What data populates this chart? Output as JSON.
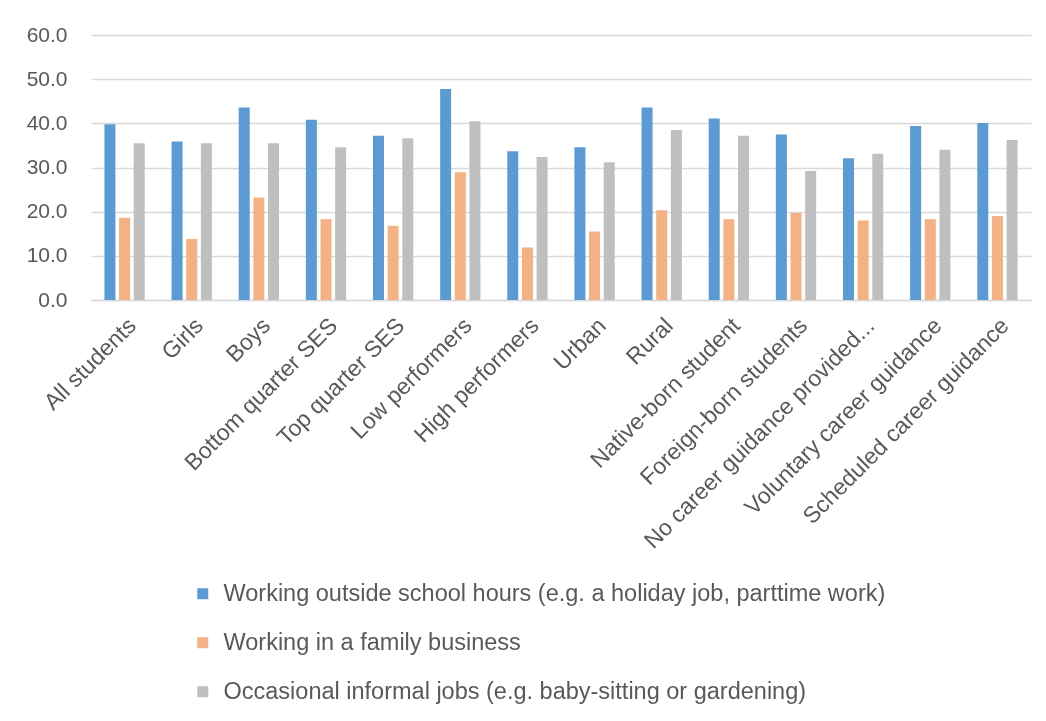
{
  "chart_data": {
    "type": "bar",
    "categories": [
      "All students",
      "Girls",
      "Boys",
      "Bottom quarter SES",
      "Top quarter SES",
      "Low performers",
      "High performers",
      "Urban",
      "Rural",
      "Native-born student",
      "Foreign-born students",
      "No career guidance provided...",
      "Voluntary career guidance",
      "Scheduled career guidance"
    ],
    "series": [
      {
        "name": "Working outside school hours (e.g. a holiday job, parttime work)",
        "color": "#5b9bd5",
        "values": [
          39.8,
          35.9,
          43.6,
          40.8,
          37.2,
          47.8,
          33.7,
          34.6,
          43.6,
          41.1,
          37.5,
          32.1,
          39.4,
          40.1
        ]
      },
      {
        "name": "Working in a family business",
        "color": "#f4b183",
        "values": [
          18.6,
          13.8,
          23.2,
          18.3,
          16.8,
          28.9,
          11.9,
          15.5,
          20.3,
          18.3,
          19.7,
          18.0,
          18.3,
          19.0
        ]
      },
      {
        "name": "Occasional informal jobs (e.g. baby-sitting or gardening)",
        "color": "#bfbfbf",
        "values": [
          35.5,
          35.5,
          35.5,
          34.6,
          36.6,
          40.5,
          32.4,
          31.2,
          38.5,
          37.2,
          29.2,
          33.1,
          34.0,
          36.2
        ]
      }
    ],
    "ylim": [
      0,
      60
    ],
    "yticks": [
      {
        "value": 0,
        "label": "0.0"
      },
      {
        "value": 10,
        "label": "10.0"
      },
      {
        "value": 20,
        "label": "20.0"
      },
      {
        "value": 30,
        "label": "30.0"
      },
      {
        "value": 40,
        "label": "40.0"
      },
      {
        "value": 50,
        "label": "50.0"
      },
      {
        "value": 60,
        "label": "60.0"
      }
    ],
    "grid": "y",
    "legend": "bottom"
  }
}
